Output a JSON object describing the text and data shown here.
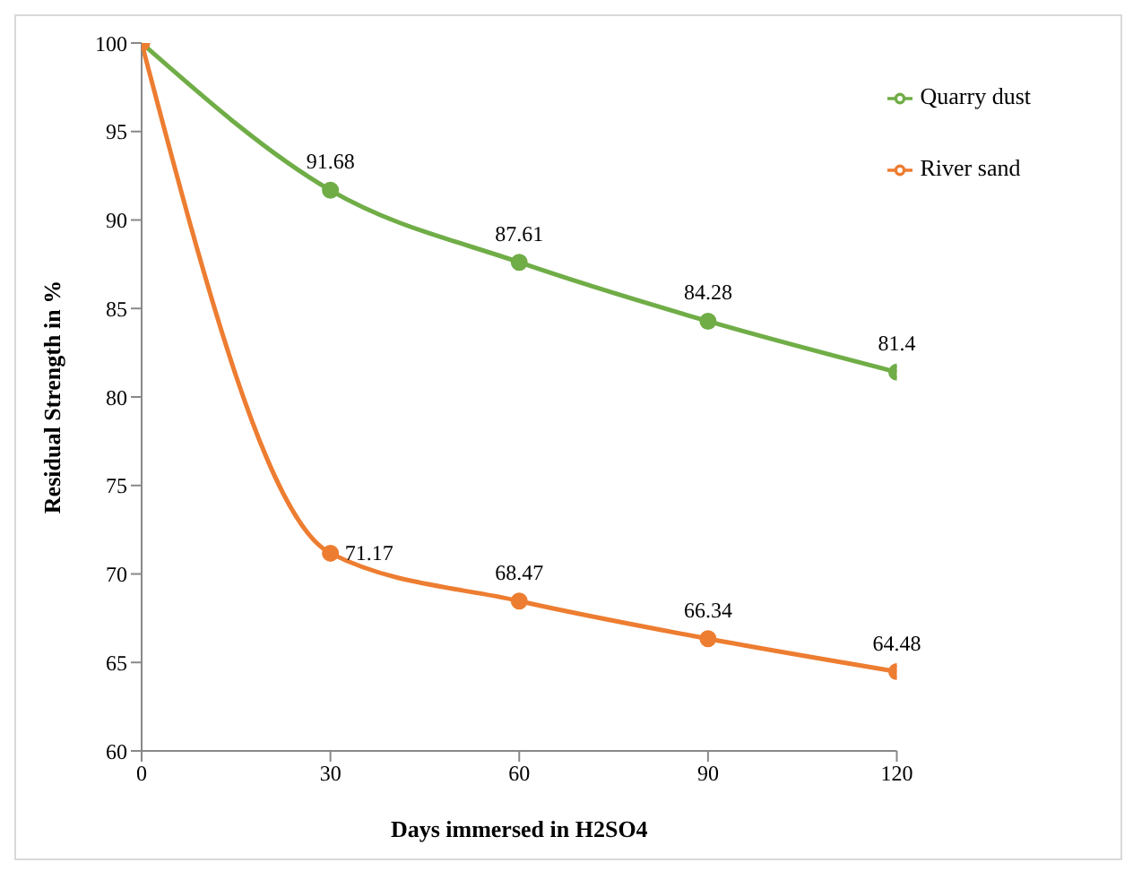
{
  "chart_data": {
    "type": "line",
    "xlabel": "Days immersed  in H2SO4",
    "ylabel": "Residual Strength in  %",
    "x": [
      0,
      30,
      60,
      90,
      120
    ],
    "series": [
      {
        "name": "Quarry dust",
        "color": "#70ad47",
        "values": [
          100,
          91.68,
          87.61,
          84.28,
          81.4
        ],
        "value_labels": [
          null,
          "91.68",
          "87.61",
          "84.28",
          "81.4"
        ]
      },
      {
        "name": "River sand",
        "color": "#ed7d31",
        "values": [
          100,
          71.17,
          68.47,
          66.34,
          64.48
        ],
        "value_labels": [
          null,
          "71.17",
          "68.47",
          "66.34",
          "64.48"
        ]
      }
    ],
    "xlim": [
      0,
      120
    ],
    "xticks": [
      0,
      30,
      60,
      90,
      120
    ],
    "ylim": [
      60,
      100
    ],
    "yticks": [
      60,
      65,
      70,
      75,
      80,
      85,
      90,
      95,
      100
    ],
    "legend": "top right",
    "marker": "circle",
    "line_style": "solid"
  }
}
